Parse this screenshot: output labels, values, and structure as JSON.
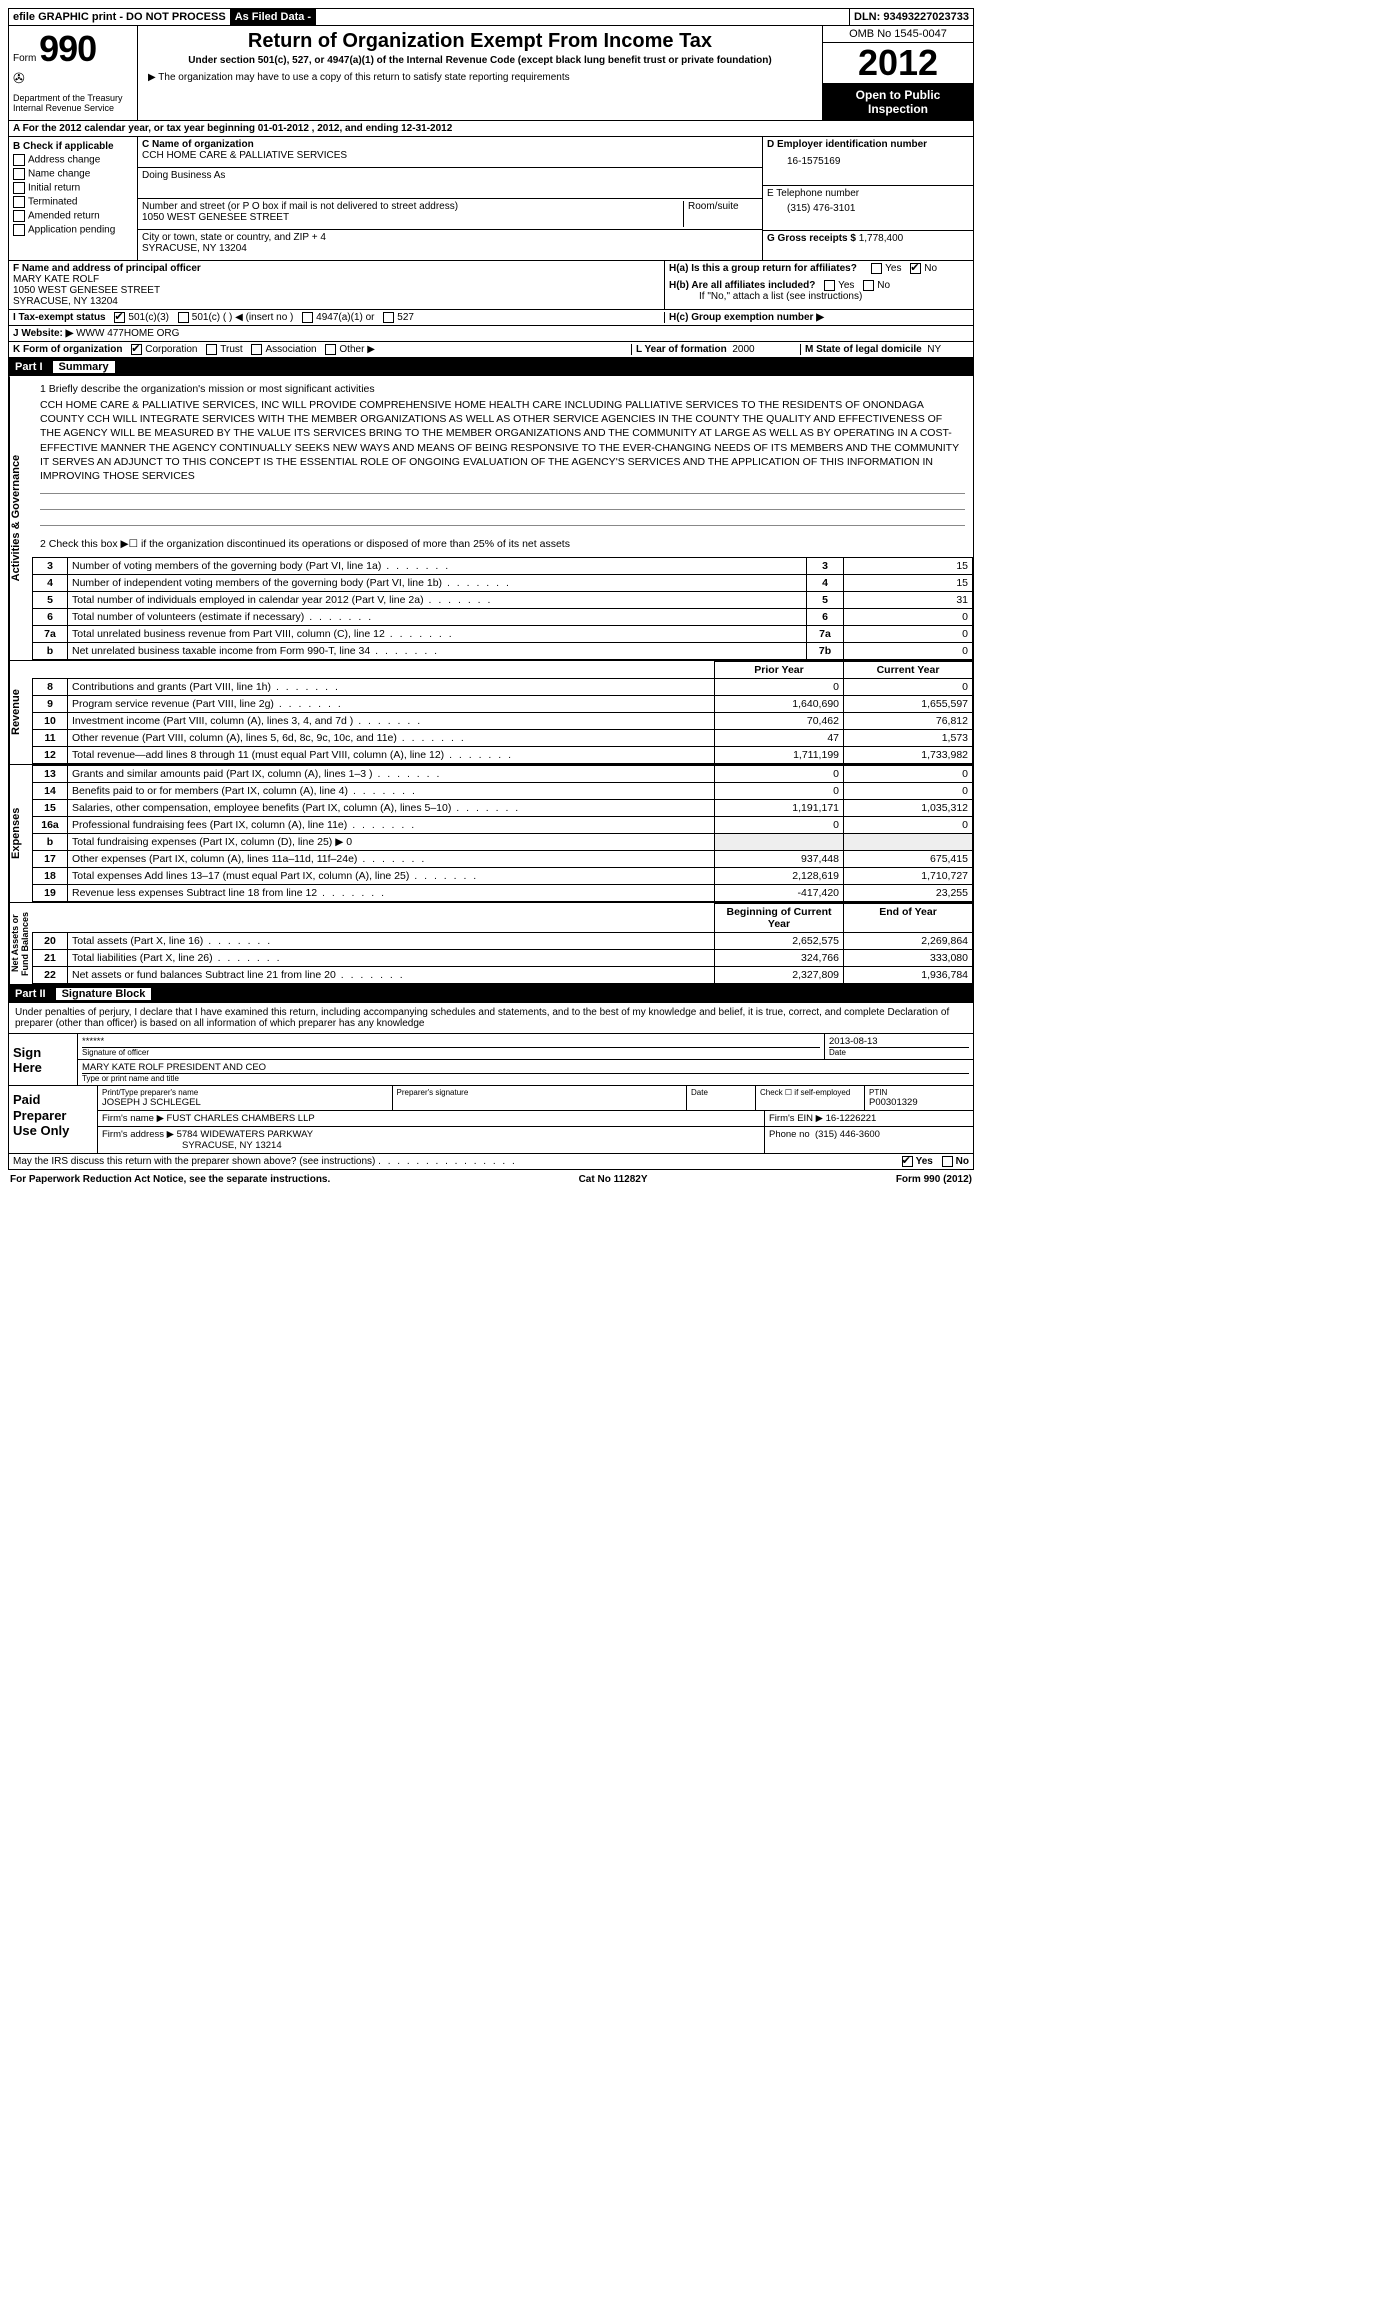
{
  "topbar": {
    "efile": "efile GRAPHIC print - DO NOT PROCESS",
    "asfiled": "As Filed Data -",
    "dln_label": "DLN:",
    "dln": "93493227023733"
  },
  "header": {
    "form_word": "Form",
    "form_num": "990",
    "dept": "Department of the Treasury\nInternal Revenue Service",
    "title": "Return of Organization Exempt From Income Tax",
    "sub": "Under section 501(c), 527, or 4947(a)(1) of the Internal Revenue Code (except black lung benefit trust or private foundation)",
    "note": "▶ The organization may have to use a copy of this return to satisfy state reporting requirements",
    "omb": "OMB No 1545-0047",
    "year": "2012",
    "open": "Open to Public Inspection"
  },
  "rowA": "A  For the 2012 calendar year, or tax year beginning 01-01-2012    , 2012, and ending 12-31-2012",
  "colB": {
    "title": "B  Check if applicable",
    "items": [
      "Address change",
      "Name change",
      "Initial return",
      "Terminated",
      "Amended return",
      "Application pending"
    ]
  },
  "colC": {
    "name_label": "C Name of organization",
    "name": "CCH HOME CARE & PALLIATIVE SERVICES",
    "dba_label": "Doing Business As",
    "dba": "",
    "street_label": "Number and street (or P O  box if mail is not delivered to street address)",
    "room_label": "Room/suite",
    "street": "1050 WEST GENESEE STREET",
    "city_label": "City or town, state or country, and ZIP + 4",
    "city": "SYRACUSE, NY  13204"
  },
  "colD": {
    "ein_label": "D Employer identification number",
    "ein": "16-1575169",
    "tel_label": "E Telephone number",
    "tel": "(315) 476-3101",
    "gross_label": "G Gross receipts $",
    "gross": "1,778,400"
  },
  "rowF": {
    "label": "F  Name and address of principal officer",
    "name": "MARY KATE ROLF",
    "addr1": "1050 WEST GENESEE STREET",
    "addr2": "SYRACUSE, NY  13204"
  },
  "rowH": {
    "ha": "H(a)  Is this a group return for affiliates?",
    "ha_yes": "Yes",
    "ha_no": "No",
    "hb": "H(b)  Are all affiliates included?",
    "hb_note": "If \"No,\" attach a list  (see instructions)",
    "hc": "H(c)   Group exemption number ▶"
  },
  "rowI": {
    "label": "I   Tax-exempt status",
    "opts": [
      "501(c)(3)",
      "501(c) (  ) ◀ (insert no )",
      "4947(a)(1) or",
      "527"
    ]
  },
  "rowJ": {
    "label": "J  Website: ▶",
    "val": "WWW 477HOME ORG"
  },
  "rowK": {
    "left_label": "K Form of organization",
    "opts": [
      "Corporation",
      "Trust",
      "Association",
      "Other ▶"
    ],
    "l_label": "L Year of formation",
    "l_val": "2000",
    "m_label": "M State of legal domicile",
    "m_val": "NY"
  },
  "partI": {
    "num": "Part I",
    "title": "Summary"
  },
  "mission": {
    "q1": "1   Briefly describe the organization's mission or most significant activities",
    "text": "CCH HOME CARE & PALLIATIVE SERVICES, INC  WILL PROVIDE COMPREHENSIVE HOME HEALTH CARE INCLUDING PALLIATIVE SERVICES TO THE RESIDENTS OF ONONDAGA COUNTY  CCH WILL INTEGRATE SERVICES WITH THE MEMBER ORGANIZATIONS AS WELL AS OTHER SERVICE AGENCIES IN THE COUNTY  THE QUALITY AND EFFECTIVENESS OF THE AGENCY WILL BE MEASURED BY THE VALUE ITS SERVICES BRING TO THE MEMBER ORGANIZATIONS AND THE COMMUNITY AT LARGE AS WELL AS BY OPERATING IN A COST-EFFECTIVE MANNER THE AGENCY CONTINUALLY SEEKS NEW WAYS AND MEANS OF BEING RESPONSIVE TO THE EVER-CHANGING NEEDS OF ITS MEMBERS AND THE COMMUNITY IT SERVES  AN ADJUNCT TO THIS CONCEPT IS THE ESSENTIAL ROLE OF ONGOING EVALUATION OF THE AGENCY'S SERVICES AND THE APPLICATION OF THIS INFORMATION IN IMPROVING THOSE SERVICES",
    "q2": "2   Check this box ▶☐ if the organization discontinued its operations or disposed of more than 25% of its net assets"
  },
  "gov_lines": [
    {
      "n": "3",
      "d": "Number of voting members of the governing body (Part VI, line 1a)",
      "box": "3",
      "v": "15"
    },
    {
      "n": "4",
      "d": "Number of independent voting members of the governing body (Part VI, line 1b)",
      "box": "4",
      "v": "15"
    },
    {
      "n": "5",
      "d": "Total number of individuals employed in calendar year 2012 (Part V, line 2a)",
      "box": "5",
      "v": "31"
    },
    {
      "n": "6",
      "d": "Total number of volunteers (estimate if necessary)",
      "box": "6",
      "v": "0"
    },
    {
      "n": "7a",
      "d": "Total unrelated business revenue from Part VIII, column (C), line 12",
      "box": "7a",
      "v": "0"
    },
    {
      "n": "b",
      "d": "Net unrelated business taxable income from Form 990-T, line 34",
      "box": "7b",
      "v": "0"
    }
  ],
  "rev_header": {
    "prior": "Prior Year",
    "curr": "Current Year"
  },
  "revenue": [
    {
      "n": "8",
      "d": "Contributions and grants (Part VIII, line 1h)",
      "p": "0",
      "c": "0"
    },
    {
      "n": "9",
      "d": "Program service revenue (Part VIII, line 2g)",
      "p": "1,640,690",
      "c": "1,655,597"
    },
    {
      "n": "10",
      "d": "Investment income (Part VIII, column (A), lines 3, 4, and 7d )",
      "p": "70,462",
      "c": "76,812"
    },
    {
      "n": "11",
      "d": "Other revenue (Part VIII, column (A), lines 5, 6d, 8c, 9c, 10c, and 11e)",
      "p": "47",
      "c": "1,573"
    },
    {
      "n": "12",
      "d": "Total revenue—add lines 8 through 11 (must equal Part VIII, column (A), line 12)",
      "p": "1,711,199",
      "c": "1,733,982"
    }
  ],
  "expenses": [
    {
      "n": "13",
      "d": "Grants and similar amounts paid (Part IX, column (A), lines 1–3 )",
      "p": "0",
      "c": "0"
    },
    {
      "n": "14",
      "d": "Benefits paid to or for members (Part IX, column (A), line 4)",
      "p": "0",
      "c": "0"
    },
    {
      "n": "15",
      "d": "Salaries, other compensation, employee benefits (Part IX, column (A), lines 5–10)",
      "p": "1,191,171",
      "c": "1,035,312"
    },
    {
      "n": "16a",
      "d": "Professional fundraising fees (Part IX, column (A), line 11e)",
      "p": "0",
      "c": "0"
    },
    {
      "n": "b",
      "d": "Total fundraising expenses (Part IX, column (D), line 25) ▶ 0",
      "p": "",
      "c": "",
      "gray": true
    },
    {
      "n": "17",
      "d": "Other expenses (Part IX, column (A), lines 11a–11d, 11f–24e)",
      "p": "937,448",
      "c": "675,415"
    },
    {
      "n": "18",
      "d": "Total expenses  Add lines 13–17 (must equal Part IX, column (A), line 25)",
      "p": "2,128,619",
      "c": "1,710,727"
    },
    {
      "n": "19",
      "d": "Revenue less expenses  Subtract line 18 from line 12",
      "p": "-417,420",
      "c": "23,255"
    }
  ],
  "net_header": {
    "prior": "Beginning of Current Year",
    "curr": "End of Year"
  },
  "netassets": [
    {
      "n": "20",
      "d": "Total assets (Part X, line 16)",
      "p": "2,652,575",
      "c": "2,269,864"
    },
    {
      "n": "21",
      "d": "Total liabilities (Part X, line 26)",
      "p": "324,766",
      "c": "333,080"
    },
    {
      "n": "22",
      "d": "Net assets or fund balances  Subtract line 21 from line 20",
      "p": "2,327,809",
      "c": "1,936,784"
    }
  ],
  "vtabs": {
    "gov": "Activities & Governance",
    "rev": "Revenue",
    "exp": "Expenses",
    "net": "Net Assets or\nFund Balances"
  },
  "partII": {
    "num": "Part II",
    "title": "Signature Block"
  },
  "sig": {
    "perjury": "Under penalties of perjury, I declare that I have examined this return, including accompanying schedules and statements, and to the best of my knowledge and belief, it is true, correct, and complete  Declaration of preparer (other than officer) is based on all information of which preparer has any knowledge",
    "sign_here": "Sign Here",
    "stars": "******",
    "sig_of_officer": "Signature of officer",
    "date": "2013-08-13",
    "date_label": "Date",
    "name_title": "MARY KATE ROLF PRESIDENT AND CEO",
    "type_label": "Type or print name and title",
    "paid": "Paid Preparer Use Only",
    "prep_name_label": "Print/Type preparer's name",
    "prep_name": "JOSEPH J SCHLEGEL",
    "prep_sig_label": "Preparer's signature",
    "prep_date_label": "Date",
    "check_self": "Check ☐ if self-employed",
    "ptin_label": "PTIN",
    "ptin": "P00301329",
    "firm_name_label": "Firm's name    ▶",
    "firm_name": "FUST CHARLES CHAMBERS LLP",
    "firm_ein_label": "Firm's EIN ▶",
    "firm_ein": "16-1226221",
    "firm_addr_label": "Firm's address ▶",
    "firm_addr1": "5784 WIDEWATERS PARKWAY",
    "firm_addr2": "SYRACUSE, NY  13214",
    "phone_label": "Phone no",
    "phone": "(315) 446-3600"
  },
  "discuss": {
    "q": "May the IRS discuss this return with the preparer shown above? (see instructions)",
    "yes": "Yes",
    "no": "No"
  },
  "footer": {
    "left": "For Paperwork Reduction Act Notice, see the separate instructions.",
    "mid": "Cat No 11282Y",
    "right": "Form 990 (2012)"
  }
}
